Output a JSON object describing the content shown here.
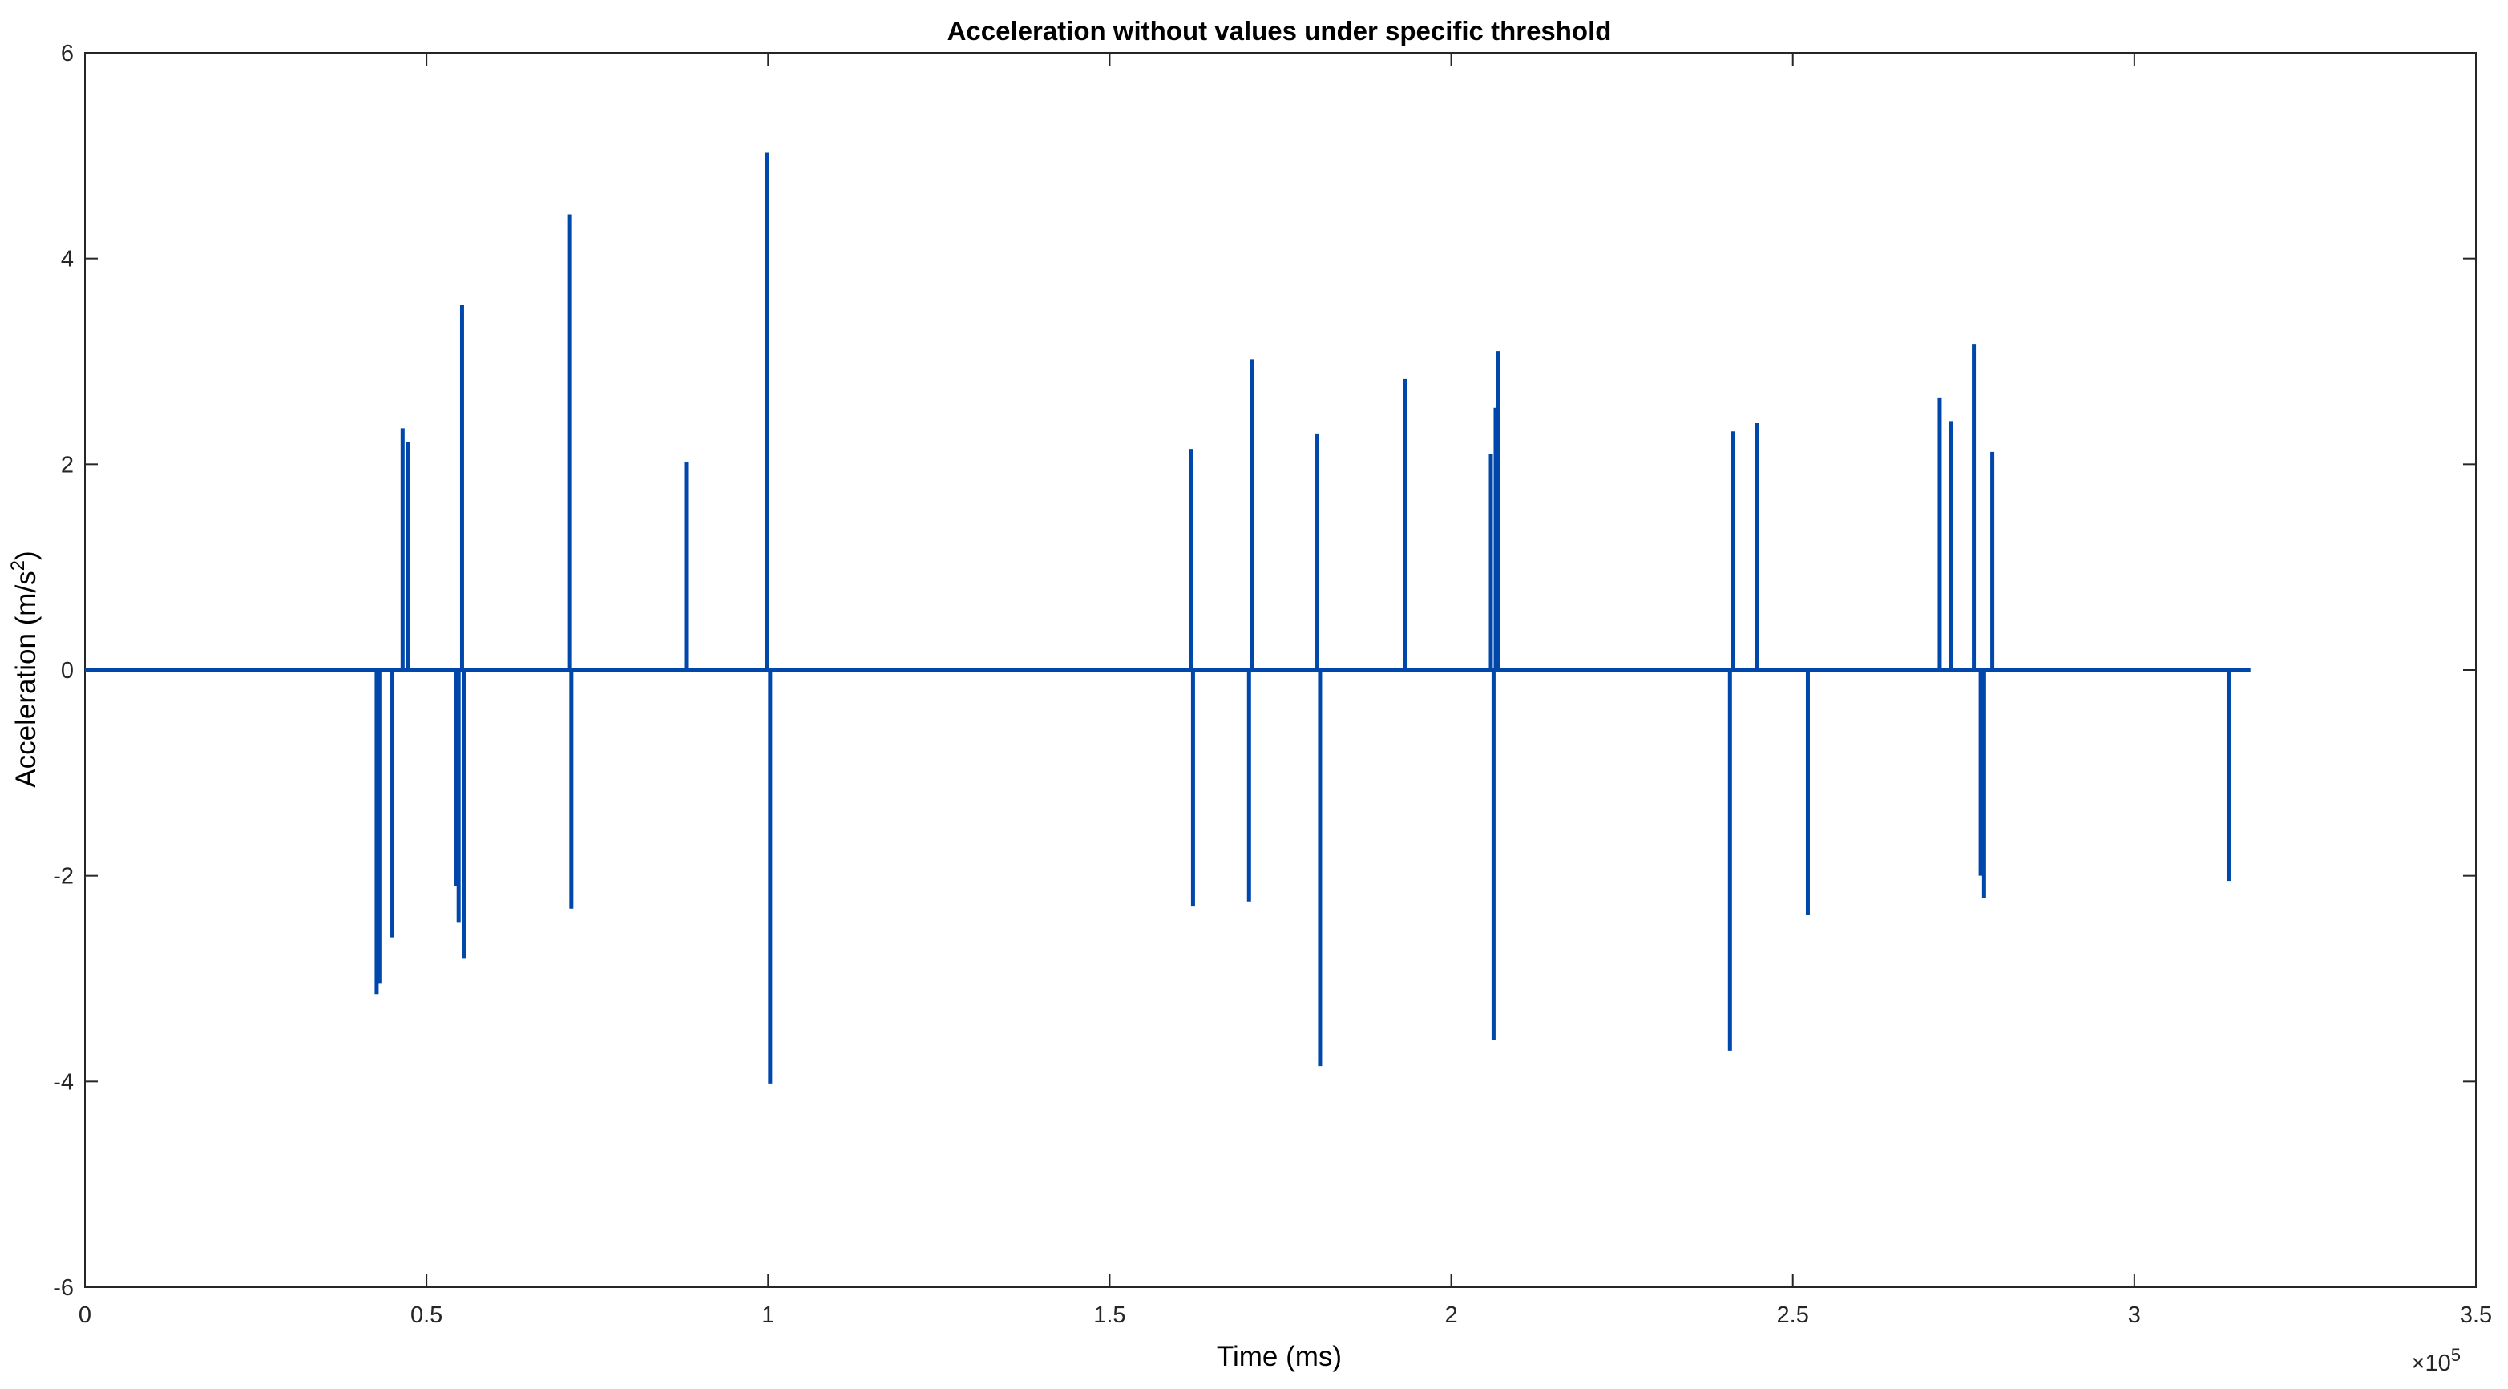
{
  "chart_data": {
    "type": "line",
    "title": "Acceleration without values under specific threshold",
    "xlabel": "Time (ms)",
    "ylabel_base": "Acceleration (m/s",
    "ylabel_sup": "2",
    "ylabel_close": ")",
    "xlim": [
      0,
      350000
    ],
    "ylim": [
      -6,
      6
    ],
    "x_ticks": [
      0,
      50000,
      100000,
      150000,
      200000,
      250000,
      300000,
      350000
    ],
    "x_tick_labels": [
      "0",
      "0.5",
      "1",
      "1.5",
      "2",
      "2.5",
      "3",
      "3.5"
    ],
    "x_exponent_label": "×10",
    "x_exponent_power": "5",
    "y_ticks": [
      -6,
      -4,
      -2,
      0,
      2,
      4,
      6
    ],
    "y_tick_labels": [
      "-6",
      "-4",
      "-2",
      "0",
      "2",
      "4",
      "6"
    ],
    "grid": false,
    "line_color": "#0047ab",
    "series": [
      {
        "x_range": [
          0,
          317000
        ],
        "spikes": [
          {
            "x": 42700,
            "y": -3.15
          },
          {
            "x": 43100,
            "y": -3.05
          },
          {
            "x": 45000,
            "y": -2.6
          },
          {
            "x": 46500,
            "y": 2.35
          },
          {
            "x": 47300,
            "y": 2.22
          },
          {
            "x": 54300,
            "y": -2.1
          },
          {
            "x": 54700,
            "y": -2.45
          },
          {
            "x": 55200,
            "y": 3.55
          },
          {
            "x": 55500,
            "y": -2.8
          },
          {
            "x": 71000,
            "y": 4.43
          },
          {
            "x": 71200,
            "y": -2.32
          },
          {
            "x": 88000,
            "y": 2.02
          },
          {
            "x": 99800,
            "y": 5.03
          },
          {
            "x": 100300,
            "y": -4.02
          },
          {
            "x": 161900,
            "y": 2.15
          },
          {
            "x": 162200,
            "y": -2.3
          },
          {
            "x": 170400,
            "y": -2.25
          },
          {
            "x": 170800,
            "y": 3.02
          },
          {
            "x": 180400,
            "y": 2.3
          },
          {
            "x": 180800,
            "y": -3.85
          },
          {
            "x": 193300,
            "y": 2.83
          },
          {
            "x": 205800,
            "y": 2.1
          },
          {
            "x": 206200,
            "y": -3.6
          },
          {
            "x": 206500,
            "y": 2.55
          },
          {
            "x": 206800,
            "y": 3.1
          },
          {
            "x": 240800,
            "y": -3.7
          },
          {
            "x": 241200,
            "y": 2.32
          },
          {
            "x": 244800,
            "y": 2.4
          },
          {
            "x": 252200,
            "y": -2.38
          },
          {
            "x": 271500,
            "y": 2.65
          },
          {
            "x": 273200,
            "y": 2.42
          },
          {
            "x": 276500,
            "y": 3.17
          },
          {
            "x": 277500,
            "y": -2.0
          },
          {
            "x": 278000,
            "y": -2.22
          },
          {
            "x": 279200,
            "y": 2.12
          },
          {
            "x": 313800,
            "y": -2.05
          }
        ]
      }
    ]
  }
}
